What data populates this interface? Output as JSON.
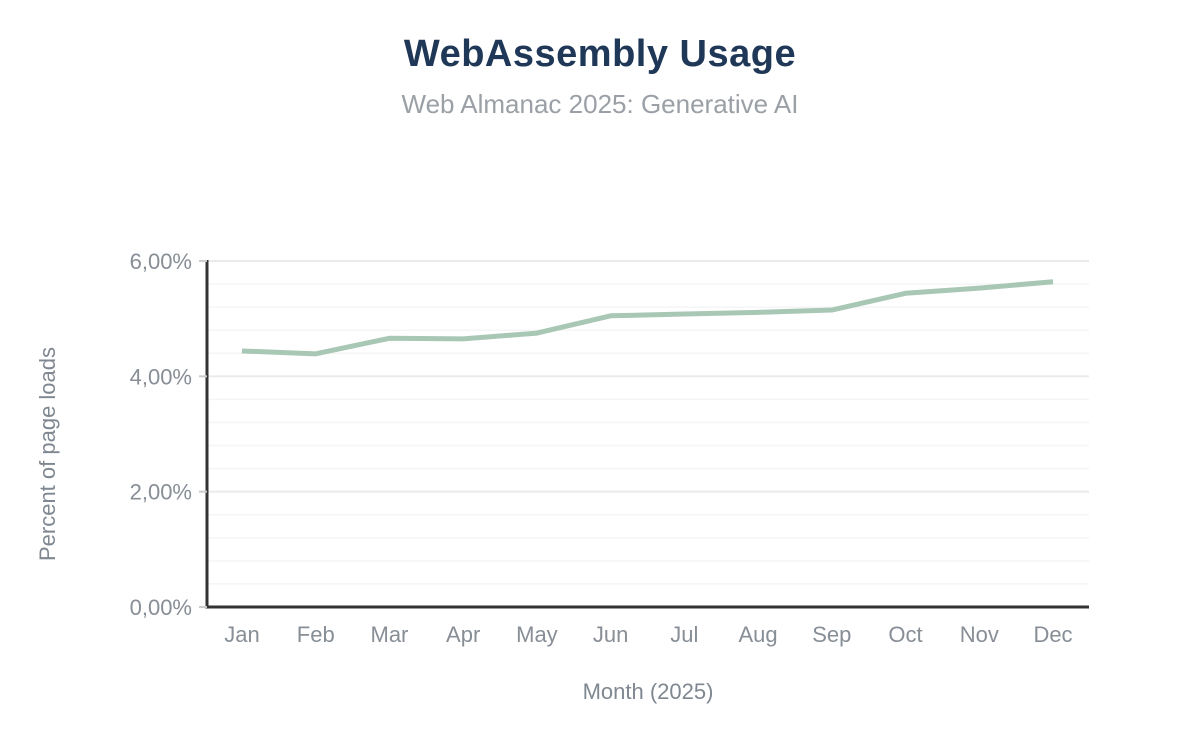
{
  "header": {
    "title": "WebAssembly Usage",
    "subtitle": "Web Almanac 2025: Generative AI"
  },
  "chart_data": {
    "type": "line",
    "title": "WebAssembly Usage",
    "subtitle": "Web Almanac 2025: Generative AI",
    "xlabel": "Month (2025)",
    "ylabel": "Percent of page loads",
    "categories": [
      "Jan",
      "Feb",
      "Mar",
      "Apr",
      "May",
      "Jun",
      "Jul",
      "Aug",
      "Sep",
      "Oct",
      "Nov",
      "Dec"
    ],
    "values": [
      4.44,
      4.39,
      4.66,
      4.65,
      4.75,
      5.05,
      5.08,
      5.11,
      5.15,
      5.44,
      5.53,
      5.64
    ],
    "unit": "%",
    "ylim": [
      0,
      6
    ],
    "ytick_values": [
      0,
      2,
      4,
      6
    ],
    "ytick_labels": [
      "0,00%",
      "2,00%",
      "4,00%",
      "6,00%"
    ],
    "minor_gridline_step": 0.4,
    "grid": true,
    "legend": "none"
  },
  "colors": {
    "title": "#203858",
    "subtitle": "#9aa0a6",
    "axis_label": "#878e96",
    "axis_title": "#7f8790",
    "axis_line": "#333333",
    "tick_mark": "#cccccc",
    "grid_major": "#ebebeb",
    "grid_minor": "#f5f5f5",
    "line": "#a9c7b5",
    "background": "#ffffff"
  }
}
